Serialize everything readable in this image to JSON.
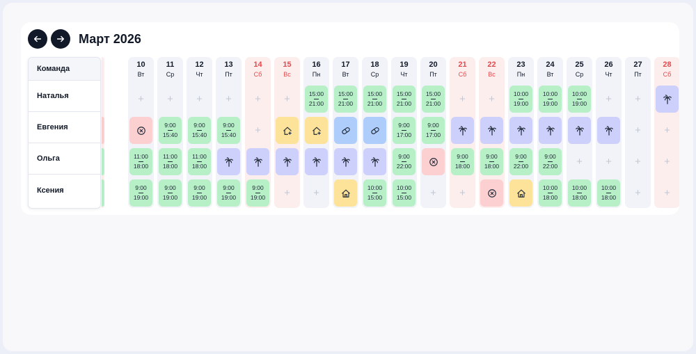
{
  "header": {
    "title": "Март 2026",
    "prev_icon": "arrow-left-icon",
    "next_icon": "arrow-right-icon"
  },
  "team": {
    "header": "Команда",
    "members": [
      "Наталья",
      "Евгения",
      "Ольга",
      "Ксения"
    ]
  },
  "colors": {
    "shift": "#b7efc7",
    "vacation": "#cdd0fb",
    "remote": "#fde39a",
    "sick": "#aecdfb",
    "absent": "#fccfd1",
    "weekend": "#fdeeee",
    "weekend_text": "#e5484d"
  },
  "days": [
    {
      "num": "",
      "wd": "",
      "weekend": true,
      "partial": true,
      "cells": [
        {
          "type": "none"
        },
        {
          "type": "absent"
        },
        {
          "type": "shift",
          "start": "",
          "end": ""
        },
        {
          "type": "shift",
          "start": "",
          "end": ""
        }
      ]
    },
    {
      "num": "10",
      "wd": "Вт",
      "weekend": false,
      "cells": [
        {
          "type": "empty"
        },
        {
          "type": "absent",
          "icon": "x-circle-icon"
        },
        {
          "type": "shift",
          "start": "11:00",
          "end": "18:00"
        },
        {
          "type": "shift",
          "start": "9:00",
          "end": "19:00"
        }
      ]
    },
    {
      "num": "11",
      "wd": "Ср",
      "weekend": false,
      "cells": [
        {
          "type": "empty"
        },
        {
          "type": "shift",
          "start": "9:00",
          "end": "15:40"
        },
        {
          "type": "shift",
          "start": "11:00",
          "end": "18:00"
        },
        {
          "type": "shift",
          "start": "9:00",
          "end": "19:00"
        }
      ]
    },
    {
      "num": "12",
      "wd": "Чт",
      "weekend": false,
      "cells": [
        {
          "type": "empty"
        },
        {
          "type": "shift",
          "start": "9:00",
          "end": "15:40"
        },
        {
          "type": "shift",
          "start": "11:00",
          "end": "18:00"
        },
        {
          "type": "shift",
          "start": "9:00",
          "end": "19:00"
        }
      ]
    },
    {
      "num": "13",
      "wd": "Пт",
      "weekend": false,
      "cells": [
        {
          "type": "empty"
        },
        {
          "type": "shift",
          "start": "9:00",
          "end": "15:40"
        },
        {
          "type": "vacation",
          "icon": "palm-tree-icon"
        },
        {
          "type": "shift",
          "start": "9:00",
          "end": "19:00"
        }
      ]
    },
    {
      "num": "14",
      "wd": "Сб",
      "weekend": true,
      "cells": [
        {
          "type": "empty"
        },
        {
          "type": "empty"
        },
        {
          "type": "vacation",
          "icon": "palm-tree-icon"
        },
        {
          "type": "shift",
          "start": "9:00",
          "end": "19:00"
        }
      ]
    },
    {
      "num": "15",
      "wd": "Вс",
      "weekend": true,
      "cells": [
        {
          "type": "empty"
        },
        {
          "type": "remote",
          "icon": "house-plus-icon"
        },
        {
          "type": "vacation",
          "icon": "palm-tree-icon"
        },
        {
          "type": "empty"
        }
      ]
    },
    {
      "num": "16",
      "wd": "Пн",
      "weekend": false,
      "cells": [
        {
          "type": "shift",
          "start": "15:00",
          "end": "21:00"
        },
        {
          "type": "remote",
          "icon": "house-plus-icon"
        },
        {
          "type": "vacation",
          "icon": "palm-tree-icon"
        },
        {
          "type": "empty"
        }
      ]
    },
    {
      "num": "17",
      "wd": "Вт",
      "weekend": false,
      "cells": [
        {
          "type": "shift",
          "start": "15:00",
          "end": "21:00"
        },
        {
          "type": "sick",
          "icon": "pill-icon"
        },
        {
          "type": "vacation",
          "icon": "palm-tree-icon"
        },
        {
          "type": "office",
          "icon": "home-icon"
        }
      ]
    },
    {
      "num": "18",
      "wd": "Ср",
      "weekend": false,
      "cells": [
        {
          "type": "shift",
          "start": "15:00",
          "end": "21:00"
        },
        {
          "type": "sick",
          "icon": "pill-icon"
        },
        {
          "type": "vacation",
          "icon": "palm-tree-icon"
        },
        {
          "type": "shift",
          "start": "10:00",
          "end": "15:00"
        }
      ]
    },
    {
      "num": "19",
      "wd": "Чт",
      "weekend": false,
      "cells": [
        {
          "type": "shift",
          "start": "15:00",
          "end": "21:00"
        },
        {
          "type": "shift",
          "start": "9:00",
          "end": "17:00"
        },
        {
          "type": "shift",
          "start": "9:00",
          "end": "22:00"
        },
        {
          "type": "shift",
          "start": "10:00",
          "end": "15:00"
        }
      ]
    },
    {
      "num": "20",
      "wd": "Пт",
      "weekend": false,
      "cells": [
        {
          "type": "shift",
          "start": "15:00",
          "end": "21:00"
        },
        {
          "type": "shift",
          "start": "9:00",
          "end": "17:00"
        },
        {
          "type": "absent",
          "icon": "x-circle-icon"
        },
        {
          "type": "empty"
        }
      ]
    },
    {
      "num": "21",
      "wd": "Сб",
      "weekend": true,
      "cells": [
        {
          "type": "empty"
        },
        {
          "type": "vacation",
          "icon": "palm-tree-icon"
        },
        {
          "type": "shift",
          "start": "9:00",
          "end": "18:00"
        },
        {
          "type": "empty"
        }
      ]
    },
    {
      "num": "22",
      "wd": "Вс",
      "weekend": true,
      "cells": [
        {
          "type": "empty"
        },
        {
          "type": "vacation",
          "icon": "palm-tree-icon"
        },
        {
          "type": "shift",
          "start": "9:00",
          "end": "18:00"
        },
        {
          "type": "absent",
          "icon": "x-circle-icon"
        }
      ]
    },
    {
      "num": "23",
      "wd": "Пн",
      "weekend": false,
      "cells": [
        {
          "type": "shift",
          "start": "10:00",
          "end": "19:00"
        },
        {
          "type": "vacation",
          "icon": "palm-tree-icon"
        },
        {
          "type": "shift",
          "start": "9:00",
          "end": "22:00"
        },
        {
          "type": "office",
          "icon": "home-icon"
        }
      ]
    },
    {
      "num": "24",
      "wd": "Вт",
      "weekend": false,
      "cells": [
        {
          "type": "shift",
          "start": "10:00",
          "end": "19:00"
        },
        {
          "type": "vacation",
          "icon": "palm-tree-icon"
        },
        {
          "type": "shift",
          "start": "9:00",
          "end": "22:00"
        },
        {
          "type": "shift",
          "start": "10:00",
          "end": "18:00"
        }
      ]
    },
    {
      "num": "25",
      "wd": "Ср",
      "weekend": false,
      "cells": [
        {
          "type": "shift",
          "start": "10:00",
          "end": "19:00"
        },
        {
          "type": "vacation",
          "icon": "palm-tree-icon"
        },
        {
          "type": "empty"
        },
        {
          "type": "shift",
          "start": "10:00",
          "end": "18:00"
        }
      ]
    },
    {
      "num": "26",
      "wd": "Чт",
      "weekend": false,
      "cells": [
        {
          "type": "empty"
        },
        {
          "type": "vacation",
          "icon": "palm-tree-icon"
        },
        {
          "type": "empty"
        },
        {
          "type": "shift",
          "start": "10:00",
          "end": "18:00"
        }
      ]
    },
    {
      "num": "27",
      "wd": "Пт",
      "weekend": false,
      "cells": [
        {
          "type": "empty"
        },
        {
          "type": "empty"
        },
        {
          "type": "empty"
        },
        {
          "type": "empty"
        }
      ]
    },
    {
      "num": "28",
      "wd": "Сб",
      "weekend": true,
      "cells": [
        {
          "type": "vacation",
          "icon": "palm-tree-icon"
        },
        {
          "type": "empty"
        },
        {
          "type": "empty"
        },
        {
          "type": "empty"
        }
      ]
    },
    {
      "num": "",
      "wd": "",
      "weekend": true,
      "partial": true,
      "cells": [
        {
          "type": "vacation"
        },
        {
          "type": "none"
        },
        {
          "type": "none"
        },
        {
          "type": "none"
        }
      ]
    }
  ]
}
